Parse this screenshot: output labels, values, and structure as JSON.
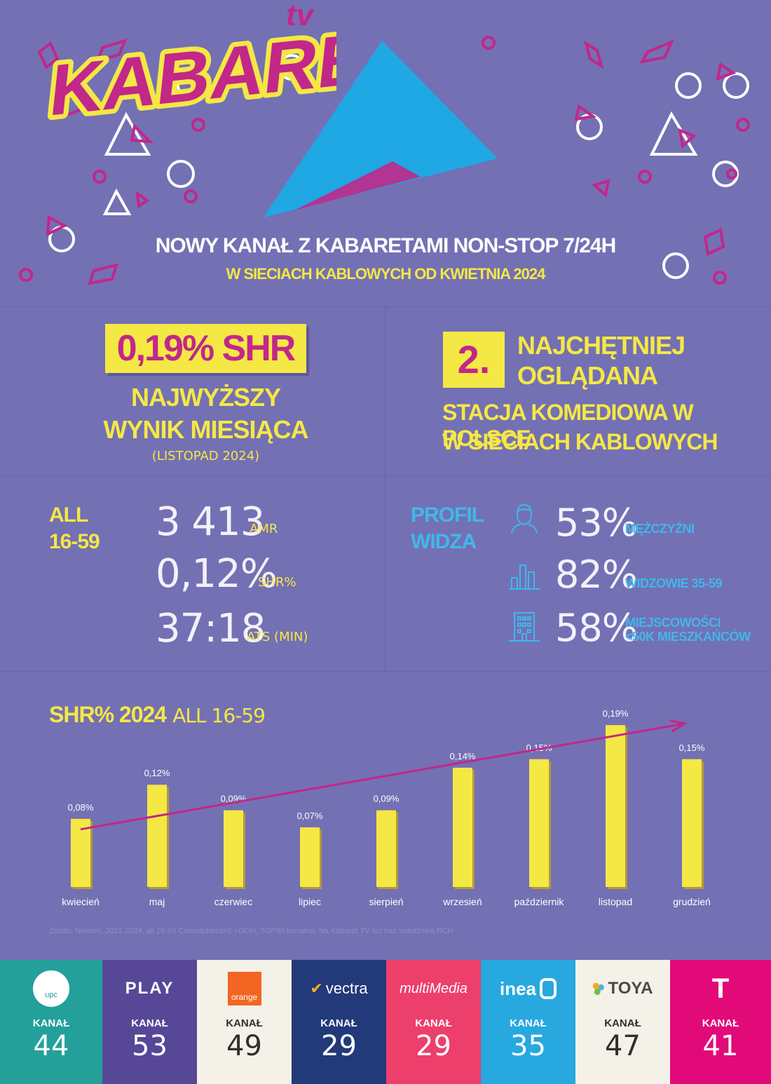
{
  "hero": {
    "logo_text": "KABARET",
    "logo_suffix": "tv",
    "headline": "NOWY KANAŁ Z KABARETAMI NON-STOP 7/24H",
    "subline": "W SIECIACH KABLOWYCH OD KWIETNIA 2024"
  },
  "best_month": {
    "value": "0,19% SHR",
    "line1": "NAJWYŻSZY",
    "line2": "WYNIK MIESIĄCA",
    "date": "(LISTOPAD 2024)"
  },
  "ranking": {
    "number": "2.",
    "line1": "NAJCHĘTNIEJ",
    "line2": "OGLĄDANA",
    "station1": "STACJA KOMEDIOWA W POLSCE",
    "station2": "W SIECIACH KABLOWYCH"
  },
  "metrics": {
    "group1": "ALL",
    "group2": "16-59",
    "items": [
      {
        "value": "3 413",
        "label": "AMR"
      },
      {
        "value": "0,12%",
        "label": "SHR%"
      },
      {
        "value": "37:18",
        "label": "ATS (MIN)"
      }
    ]
  },
  "profile": {
    "title1": "PROFIL",
    "title2": "WIDZA",
    "items": [
      {
        "icon": "man-icon",
        "value": "53%",
        "label1": "MĘŻCZYŹNI",
        "label2": ""
      },
      {
        "icon": "bar-chart-icon",
        "value": "82%",
        "label1": "WIDZOWIE 35-59",
        "label2": ""
      },
      {
        "icon": "building-icon",
        "value": "58%",
        "label1": "MIEJSCOWOŚCI",
        "label2": "<50K MIESZKAŃCÓW"
      }
    ]
  },
  "chart_data": {
    "type": "bar",
    "title": "SHR% 2024",
    "subtitle": "ALL 16-59",
    "categories": [
      "kwiecień",
      "maj",
      "czerwiec",
      "lipiec",
      "sierpień",
      "wrzesień",
      "październik",
      "listopad",
      "grudzień"
    ],
    "values": [
      0.08,
      0.12,
      0.09,
      0.07,
      0.09,
      0.14,
      0.15,
      0.19,
      0.15
    ],
    "data_labels": [
      "0,08%",
      "0,12%",
      "0,09%",
      "0,07%",
      "0,09%",
      "0,14%",
      "0,15%",
      "0,19%",
      "0,15%"
    ],
    "ylim": [
      0,
      0.2
    ],
    "grid": false,
    "trend_arrow": true,
    "bar_color": "#f4e845",
    "trend_color": "#c2278a"
  },
  "source": "Źródło: Nielsen, 2021-2024, all 16-59 Consolidated+2 +OOH, TOP30 kanałów, Na Kabaret TV też bez wskaźnika RCH",
  "operators": [
    {
      "name": "upc",
      "logo_text": "upc",
      "kanal": "KANAŁ",
      "number": "44",
      "bg": "#23a09a",
      "fg": "#ffffff"
    },
    {
      "name": "play",
      "logo_text": "PLAY",
      "kanal": "KANAŁ",
      "number": "53",
      "bg": "#574797",
      "fg": "#ffffff"
    },
    {
      "name": "orange",
      "logo_text": "orange",
      "kanal": "KANAŁ",
      "number": "49",
      "bg": "#f4f1e8",
      "fg": "#2f2f2f"
    },
    {
      "name": "vectra",
      "logo_text": "vectra",
      "kanal": "KANAŁ",
      "number": "29",
      "bg": "#22397a",
      "fg": "#ffffff"
    },
    {
      "name": "multimedia",
      "logo_text": "multiMedia",
      "kanal": "KANAŁ",
      "number": "29",
      "bg": "#ec3f6c",
      "fg": "#ffffff"
    },
    {
      "name": "inea",
      "logo_text": "inea",
      "kanal": "KANAŁ",
      "number": "35",
      "bg": "#27a8df",
      "fg": "#ffffff"
    },
    {
      "name": "toya",
      "logo_text": "TOYA",
      "kanal": "KANAŁ",
      "number": "47",
      "bg": "#f4f1e8",
      "fg": "#2f2f2f"
    },
    {
      "name": "t-mobile",
      "logo_text": "T",
      "kanal": "KANAŁ",
      "number": "41",
      "bg": "#e20a79",
      "fg": "#ffffff"
    }
  ]
}
